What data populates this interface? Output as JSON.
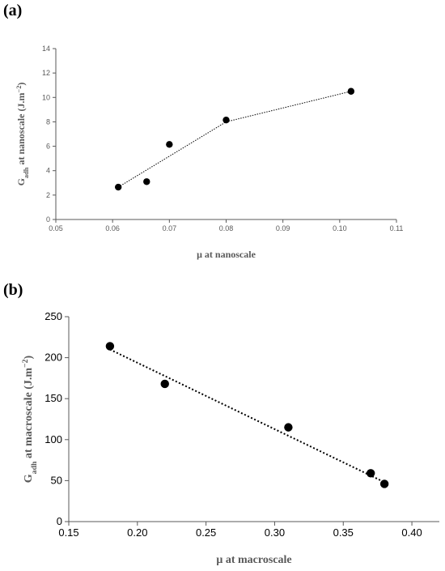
{
  "panels": [
    {
      "label": "(a)"
    },
    {
      "label": "(b)"
    }
  ],
  "colors": {
    "axis": "#595959",
    "marker": "#000000",
    "trend": "#000000"
  },
  "chart_data": [
    {
      "type": "scatter",
      "title": "",
      "xlabel": "μ at nanoscale",
      "ylabel": {
        "prefix": "G",
        "sub": "adh",
        "rest": " at nanoscale (J.m",
        "sup": "−2",
        "close": ")"
      },
      "xlim": [
        0.05,
        0.11
      ],
      "ylim": [
        0,
        14
      ],
      "x_ticks": [
        "0.05",
        "0.06",
        "0.07",
        "0.08",
        "0.09",
        "0.10",
        "0.11"
      ],
      "y_ticks": [
        "0",
        "2",
        "4",
        "6",
        "8",
        "10",
        "12",
        "14"
      ],
      "grid": false,
      "series": [
        {
          "points": [
            [
              0.061,
              2.65
            ],
            [
              0.066,
              3.1
            ],
            [
              0.07,
              6.15
            ],
            [
              0.08,
              8.15
            ],
            [
              0.102,
              10.5
            ]
          ]
        }
      ],
      "trendline": {
        "style": "dotted",
        "kind": "piecewise-linear",
        "points": [
          [
            0.061,
            2.65
          ],
          [
            0.08,
            8.0
          ],
          [
            0.102,
            10.5
          ]
        ]
      }
    },
    {
      "type": "scatter",
      "title": "",
      "xlabel": "μ at macroscale",
      "ylabel": {
        "prefix": "G",
        "sub": "adh",
        "rest": " at macroscale (J.m",
        "sup": "−2",
        "close": ")"
      },
      "xlim": [
        0.15,
        0.42
      ],
      "ylim": [
        0,
        250
      ],
      "x_ticks": [
        "0.15",
        "0.20",
        "0.25",
        "0.30",
        "0.35",
        "0.40"
      ],
      "y_ticks": [
        "0",
        "50",
        "100",
        "150",
        "200",
        "250"
      ],
      "grid": false,
      "series": [
        {
          "points": [
            [
              0.18,
              214
            ],
            [
              0.22,
              168
            ],
            [
              0.31,
              115
            ],
            [
              0.37,
              59
            ],
            [
              0.38,
              46
            ]
          ]
        }
      ],
      "trendline": {
        "style": "dotted",
        "kind": "linear",
        "points": [
          [
            0.18,
            210
          ],
          [
            0.38,
            48
          ]
        ]
      }
    }
  ]
}
